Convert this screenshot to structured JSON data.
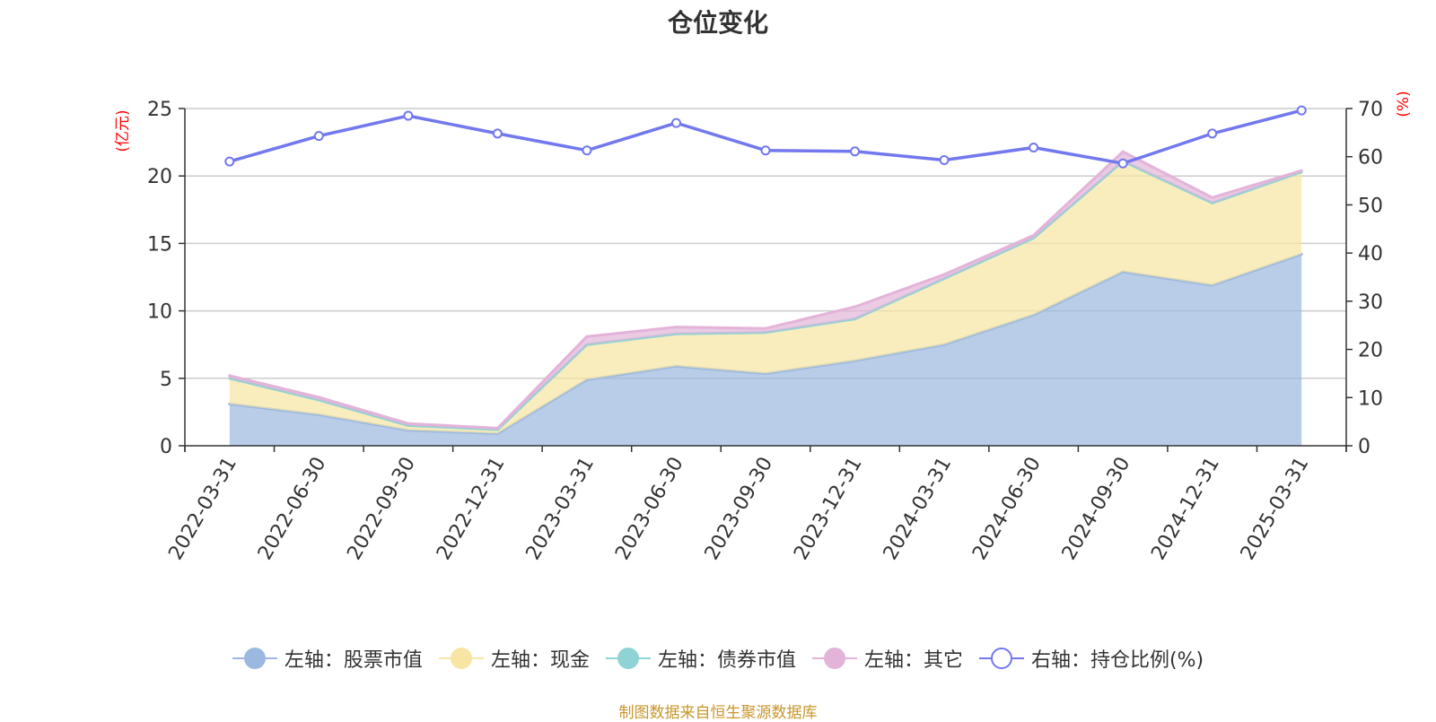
{
  "title": "仓位变化",
  "source_note": "制图数据来自恒生聚源数据库",
  "chart_data": {
    "type": "area",
    "categories": [
      "2022-03-31",
      "2022-06-30",
      "2022-09-30",
      "2022-12-31",
      "2023-03-31",
      "2023-06-30",
      "2023-09-30",
      "2023-12-31",
      "2024-03-31",
      "2024-06-30",
      "2024-09-30",
      "2024-12-31",
      "2025-03-31"
    ],
    "y_left": {
      "label": "(亿元)",
      "ticks": [
        "0",
        "5",
        "10",
        "15",
        "20",
        "25"
      ],
      "range": [
        0,
        25
      ]
    },
    "y_right": {
      "label": "(%)",
      "ticks": [
        "0",
        "10",
        "20",
        "30",
        "40",
        "50",
        "60",
        "70"
      ],
      "range": [
        0,
        70
      ]
    },
    "series": [
      {
        "name": "左轴：股票市值",
        "axis": "left",
        "kind": "stacked-area",
        "color": "#9bb8e0",
        "values": [
          3.1,
          2.3,
          1.15,
          0.9,
          4.9,
          5.9,
          5.35,
          6.3,
          7.5,
          9.7,
          12.9,
          11.9,
          14.2
        ]
      },
      {
        "name": "左轴：现金",
        "axis": "left",
        "kind": "stacked-area",
        "color": "#f7e6a3",
        "values": [
          1.9,
          1.1,
          0.35,
          0.3,
          2.6,
          2.4,
          3.05,
          3.1,
          4.9,
          5.7,
          8.2,
          6.1,
          6.1
        ]
      },
      {
        "name": "左轴：债券市值",
        "axis": "left",
        "kind": "stacked-area",
        "color": "#8fd3d6",
        "values": [
          0,
          0,
          0,
          0,
          0,
          0,
          0,
          0,
          0,
          0,
          0,
          0,
          0
        ]
      },
      {
        "name": "左轴：其它",
        "axis": "left",
        "kind": "stacked-area",
        "color": "#e3b3d9",
        "values": [
          0.2,
          0.2,
          0.15,
          0.1,
          0.6,
          0.5,
          0.3,
          0.9,
          0.3,
          0.2,
          0.7,
          0.4,
          0.1
        ]
      },
      {
        "name": "右轴：持仓比例(%)",
        "axis": "right",
        "kind": "line",
        "color": "#7278ee",
        "values": [
          59.0,
          64.3,
          68.5,
          64.8,
          61.3,
          67.0,
          61.3,
          61.1,
          59.3,
          61.9,
          58.6,
          64.8,
          69.6
        ]
      }
    ],
    "grid": true,
    "legend_position": "bottom"
  }
}
